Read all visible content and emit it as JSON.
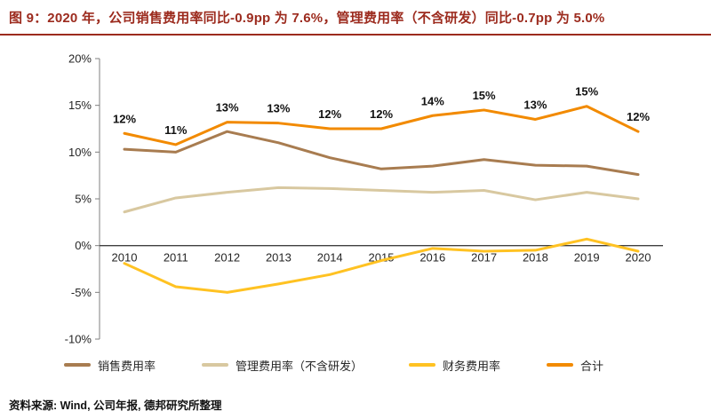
{
  "header": {
    "title": "图 9：2020 年，公司销售费用率同比-0.9pp 为 7.6%，管理费用率（不含研发）同比-0.7pp 为 5.0%"
  },
  "footer": {
    "source": "资料来源: Wind, 公司年报, 德邦研究所整理"
  },
  "theme": {
    "title_color": "#9c2b1e",
    "axis_line_color": "#7f7f7f",
    "zero_line_color": "#404040",
    "label_color": "#262626"
  },
  "chart_data": {
    "type": "line",
    "title": "",
    "xlabel": "",
    "ylabel": "",
    "categories": [
      "2010",
      "2011",
      "2012",
      "2013",
      "2014",
      "2015",
      "2016",
      "2017",
      "2018",
      "2019",
      "2020"
    ],
    "ylim": [
      -10,
      20
    ],
    "yticks": [
      20,
      15,
      10,
      5,
      0,
      -5,
      -10
    ],
    "ytick_labels": [
      "20%",
      "15%",
      "10%",
      "5%",
      "0%",
      "-5%",
      "-10%"
    ],
    "grid": false,
    "legend_position": "bottom",
    "series": [
      {
        "name": "销售费用率",
        "color": "#a87c50",
        "values": [
          10.3,
          10.0,
          12.2,
          11.0,
          9.4,
          8.2,
          8.5,
          9.2,
          8.6,
          8.5,
          7.6
        ]
      },
      {
        "name": "管理费用率（不含研发）",
        "color": "#d8c8a0",
        "values": [
          3.6,
          5.1,
          5.7,
          6.2,
          6.1,
          5.9,
          5.7,
          5.9,
          4.9,
          5.7,
          5.0
        ]
      },
      {
        "name": "财务费用率",
        "color": "#ffc222",
        "values": [
          -1.9,
          -4.4,
          -5.0,
          -4.1,
          -3.1,
          -1.6,
          -0.3,
          -0.6,
          -0.5,
          0.7,
          -0.6
        ]
      },
      {
        "name": "合计",
        "color": "#f28a00",
        "values": [
          12.0,
          10.8,
          13.2,
          13.1,
          12.5,
          12.5,
          13.9,
          14.5,
          13.5,
          14.9,
          12.2
        ],
        "point_labels": [
          "12%",
          "11%",
          "13%",
          "13%",
          "12%",
          "12%",
          "14%",
          "15%",
          "13%",
          "15%",
          "12%"
        ]
      }
    ]
  }
}
